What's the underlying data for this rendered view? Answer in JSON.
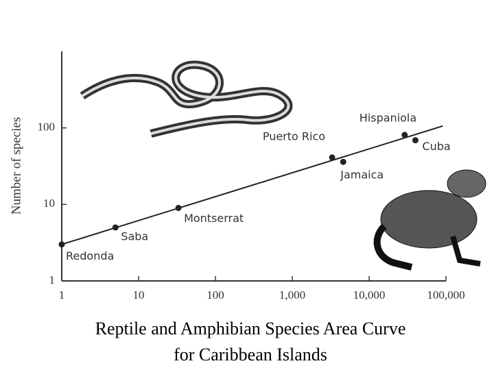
{
  "chart_data": {
    "type": "scatter",
    "title": [
      "Reptile and Amphibian Species Area Curve",
      "for Caribbean Islands"
    ],
    "y_label": "Number of species",
    "log_x": true,
    "log_y": true,
    "labels": [
      "Redonda",
      "Saba",
      "Montserrat",
      "Puerto Rico",
      "Jamaica",
      "Hispaniola",
      "Cuba"
    ],
    "x": [
      1,
      5,
      33,
      3300,
      4600,
      29000,
      40000
    ],
    "y": [
      3,
      5,
      9,
      41,
      36,
      81,
      69
    ],
    "color": "#222222",
    "fit_line": {
      "x": [
        1,
        91000
      ],
      "y": [
        3,
        106
      ]
    },
    "xlim": [
      1,
      100000
    ],
    "ylim": [
      1,
      1000
    ],
    "xticks": [
      1,
      10,
      100,
      {
        "value": 1000,
        "label": "1,000"
      },
      {
        "value": 10000,
        "label": "10,000"
      },
      {
        "value": 100000,
        "label": "100,000"
      }
    ],
    "yticks": [
      1,
      10,
      100
    ]
  }
}
